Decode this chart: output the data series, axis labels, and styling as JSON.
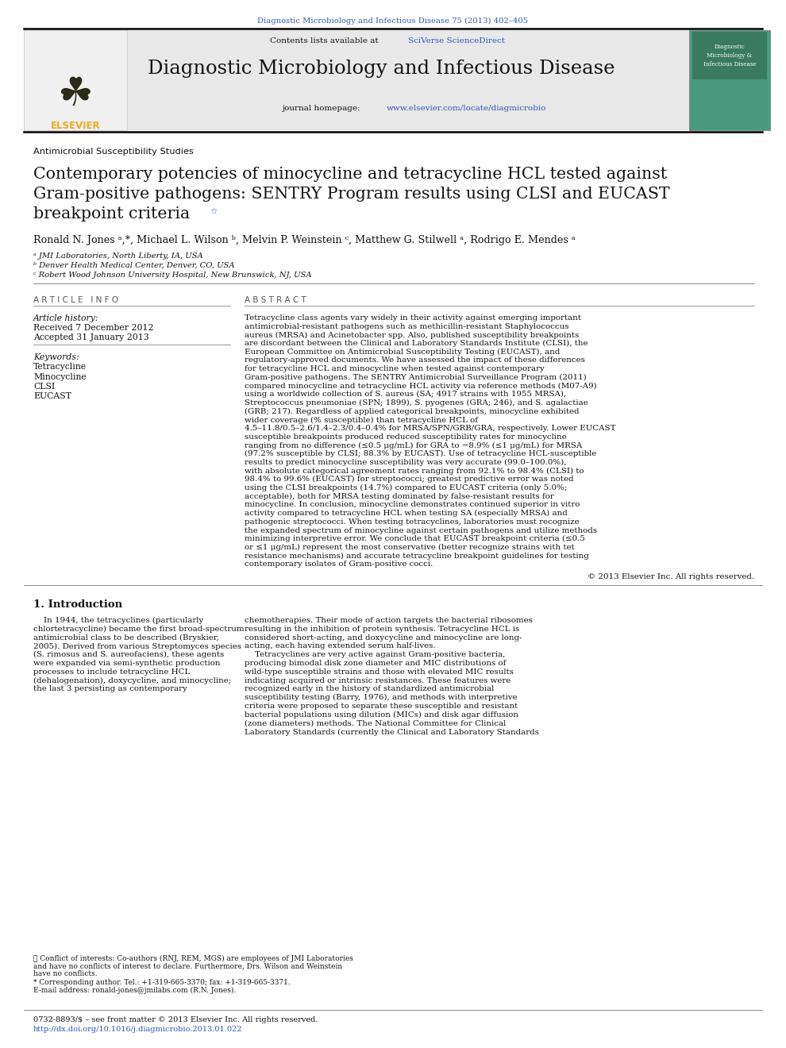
{
  "journal_ref": "Diagnostic Microbiology and Infectious Disease 75 (2013) 402–405",
  "journal_ref_color": "#3355bb",
  "sciverse_text": "SciVerse ScienceDirect",
  "sciverse_color": "#3355bb",
  "journal_name": "Diagnostic Microbiology and Infectious Disease",
  "journal_url": "www.elsevier.com/locate/diagmicrobio",
  "journal_url_color": "#3355bb",
  "section_label": "Antimicrobial Susceptibility Studies",
  "title_line1": "Contemporary potencies of minocycline and tetracycline HCL tested against",
  "title_line2": "Gram-positive pathogens: SENTRY Program results using CLSI and EUCAST",
  "title_line3": "breakpoint criteria",
  "authors": "Ronald N. Jones ᵃ,*, Michael L. Wilson ᵇ, Melvin P. Weinstein ᶜ, Matthew G. Stilwell ᵃ, Rodrigo E. Mendes ᵃ",
  "affil_a": "ᵃ JMI Laboratories, North Liberty, IA, USA",
  "affil_b": "ᵇ Denver Health Medical Center, Denver, CO, USA",
  "affil_c": "ᶜ Robert Wood Johnson University Hospital, New Brunswick, NJ, USA",
  "art_info_hdr": "A R T I C L E   I N F O",
  "art_history_label": "Article history:",
  "received": "Received 7 December 2012",
  "accepted": "Accepted 31 January 2013",
  "keywords_label": "Keywords:",
  "keywords": [
    "Tetracycline",
    "Minocycline",
    "CLSI",
    "EUCAST"
  ],
  "abstract_hdr": "A B S T R A C T",
  "abstract": "Tetracycline class agents vary widely in their activity against emerging important antimicrobial-resistant pathogens such as methicillin-resistant Staphylococcus aureus (MRSA) and Acinetobacter spp. Also, published susceptibility breakpoints are discordant between the Clinical and Laboratory Standards Institute (CLSI), the European Committee on Antimicrobial Susceptibility Testing (EUCAST), and regulatory-approved documents. We have assessed the impact of these differences for tetracycline HCL and minocycline when tested against contemporary Gram-positive pathogens. The SENTRY Antimicrobial Surveillance Program (2011) compared minocycline and tetracycline HCL activity via reference methods (M07-A9) using a worldwide collection of S. aureus (SA; 4917 strains with 1955 MRSA), Streptococcus pneumoniae (SPN; 1899), S. pyogenes (GRA; 246), and S. agalactiae (GRB; 217). Regardless of applied categorical breakpoints, minocycline exhibited wider coverage (% susceptible) than tetracycline HCL of 4.5–11.8/0.5–2.6/1.4–2.3/0.4–0.4% for MRSA/SPN/GRB/GRA, respectively. Lower EUCAST susceptible breakpoints produced reduced susceptibility rates for minocycline ranging from no difference (≤0.5 μg/mL) for GRA to −8.9% (≤1 μg/mL) for MRSA (97.2% susceptible by CLSI; 88.3% by EUCAST). Use of tetracycline HCL-susceptible results to predict minocycline susceptibility was very accurate (99.0–100.0%), with absolute categorical agreement rates ranging from 92.1% to 98.4% (CLSI) to 98.4% to 99.6% (EUCAST) for streptococci; greatest predictive error was noted using the CLSI breakpoints (14.7%) compared to EUCAST criteria (only 5.0%; acceptable), both for MRSA testing dominated by false-resistant results for minocycline. In conclusion, minocycline demonstrates continued superior in vitro activity compared to tetracycline HCL when testing SA (especially MRSA) and pathogenic streptococci. When testing tetracyclines, laboratories must recognize the expanded spectrum of minocycline against certain pathogens and utilize methods minimizing interpretive error. We conclude that EUCAST breakpoint criteria (≤0.5 or ≤1 μg/mL) represent the most conservative (better recognize strains with tet resistance mechanisms) and accurate tetracycline breakpoint guidelines for testing contemporary isolates of Gram-positive cocci.",
  "copyright": "© 2013 Elsevier Inc. All rights reserved.",
  "intro_hdr": "1. Introduction",
  "intro_col1_lines": [
    "    In 1944, the tetracyclines (particularly",
    "chlortetracycline) became the first broad-spectrum",
    "antimicrobial class to be described (Bryskier,",
    "2005). Derived from various Streptomyces species",
    "(S. rimosus and S. aureofaciens), these agents",
    "were expanded via semi-synthetic production",
    "processes to include tetracycline HCL",
    "(dehalogenation), doxycycline, and minocycline;",
    "the last 3 persisting as contemporary"
  ],
  "intro_col2_lines": [
    "chemotherapies. Their mode of action targets the bacterial ribosomes",
    "resulting in the inhibition of protein synthesis. Tetracycline HCL is",
    "considered short-acting, and doxycycline and minocycline are long-",
    "acting, each having extended serum half-lives.",
    "    Tetracyclines are very active against Gram-positive bacteria,",
    "producing bimodal disk zone diameter and MIC distributions of",
    "wild-type susceptible strains and those with elevated MIC results",
    "indicating acquired or intrinsic resistances. These features were",
    "recognized early in the history of standardized antimicrobial",
    "susceptibility testing (Barry, 1976), and methods with interpretive",
    "criteria were proposed to separate these susceptible and resistant",
    "bacterial populations using dilution (MICs) and disk agar diffusion",
    "(zone diameters) methods. The National Committee for Clinical",
    "Laboratory Standards (currently the Clinical and Laboratory Standards"
  ],
  "fn_star": "★ Conflict of interests: Co-authors (RNJ, REM, MGS) are employees of JMI Laboratories",
  "fn_star2": "and have no conflicts of interest to declare. Furthermore, Drs. Wilson and Weinstein",
  "fn_star3": "have no conflicts.",
  "fn_corr": "* Corresponding author. Tel.: +1-319-665-3370; fax: +1-319-665-3371.",
  "fn_email": "E-mail address: ronald-jones@jmilabs.com (R.N. Jones).",
  "footer1": "0732-8893/$ – see front matter © 2013 Elsevier Inc. All rights reserved.",
  "footer2": "http://dx.doi.org/10.1016/j.diagmicrobio.2013.01.022",
  "blue": "#3355bb",
  "black": "#111111",
  "gray": "#555555",
  "light_bg": "#e8e8e8",
  "teal_cover": "#4a9a80",
  "elsevier_orange": "#f5a623",
  "white": "#ffffff"
}
